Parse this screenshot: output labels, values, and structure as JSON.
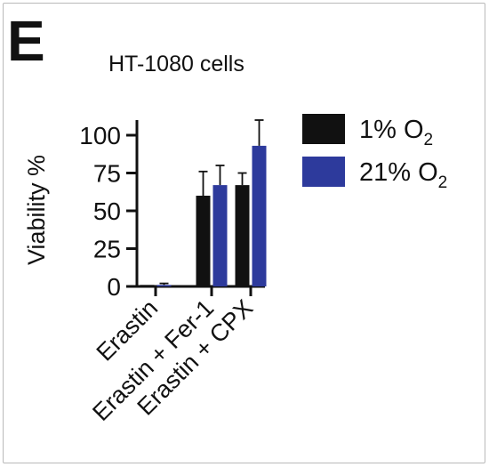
{
  "panel_label": "E",
  "chart_data": {
    "type": "bar",
    "title": "HT-1080 cells",
    "xlabel": "",
    "ylabel": "Viability %",
    "ylim": [
      0,
      110
    ],
    "yticks": [
      0,
      25,
      50,
      75,
      100
    ],
    "categories": [
      "Erastin",
      "Erastin + Fer-1",
      "Erastin + CPX"
    ],
    "series": [
      {
        "name": "1% O2",
        "name_main": "1% O",
        "name_sub": "2",
        "color": "#111111",
        "values": [
          1,
          60,
          67
        ],
        "errors": [
          0,
          16,
          8
        ]
      },
      {
        "name": "21% O2",
        "name_main": "21% O",
        "name_sub": "2",
        "color": "#2d3a9c",
        "values": [
          1,
          67,
          93
        ],
        "errors": [
          1,
          13,
          17
        ]
      }
    ],
    "error_bars": true,
    "grid": false,
    "legend_position": "top-right"
  }
}
